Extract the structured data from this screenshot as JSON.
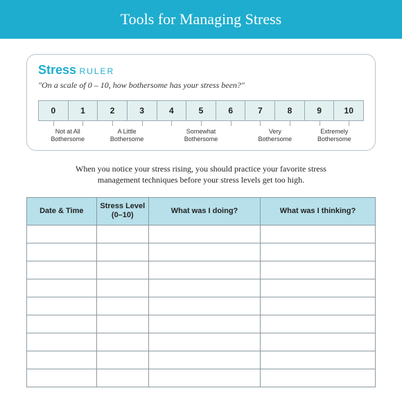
{
  "header": {
    "title": "Tools for Managing Stress"
  },
  "ruler": {
    "word_stress": "Stress",
    "word_ruler": "RULER",
    "question": "\"On a scale of 0 – 10, how bothersome has your stress been?\"",
    "scale": [
      "0",
      "1",
      "2",
      "3",
      "4",
      "5",
      "6",
      "7",
      "8",
      "9",
      "10"
    ],
    "labels": [
      {
        "text": "Not at All\nBothersome",
        "span": 2
      },
      {
        "text": "A Little\nBothersome",
        "span": 2
      },
      {
        "text": "Somewhat\nBothersome",
        "span": 3
      },
      {
        "text": "Very\nBothersome",
        "span": 2
      },
      {
        "text": "Extremely\nBothersome",
        "span": 2
      }
    ],
    "colors": {
      "accent": "#1eadce",
      "track_bg": "#e3f0f0",
      "border": "#9aabb5"
    }
  },
  "intro": "When you notice your stress rising, you should practice your favorite stress management techniques before your stress levels get too high.",
  "table": {
    "columns": [
      {
        "label": "Date & Time",
        "class": "col-date"
      },
      {
        "label": "Stress Level\n(0–10)",
        "class": "col-level"
      },
      {
        "label": "What was I doing?",
        "class": "col-doing"
      },
      {
        "label": "What was I thinking?",
        "class": "col-thinking"
      }
    ],
    "row_count": 9,
    "header_bg": "#b7e0ea",
    "border_color": "#8a9aa3"
  }
}
